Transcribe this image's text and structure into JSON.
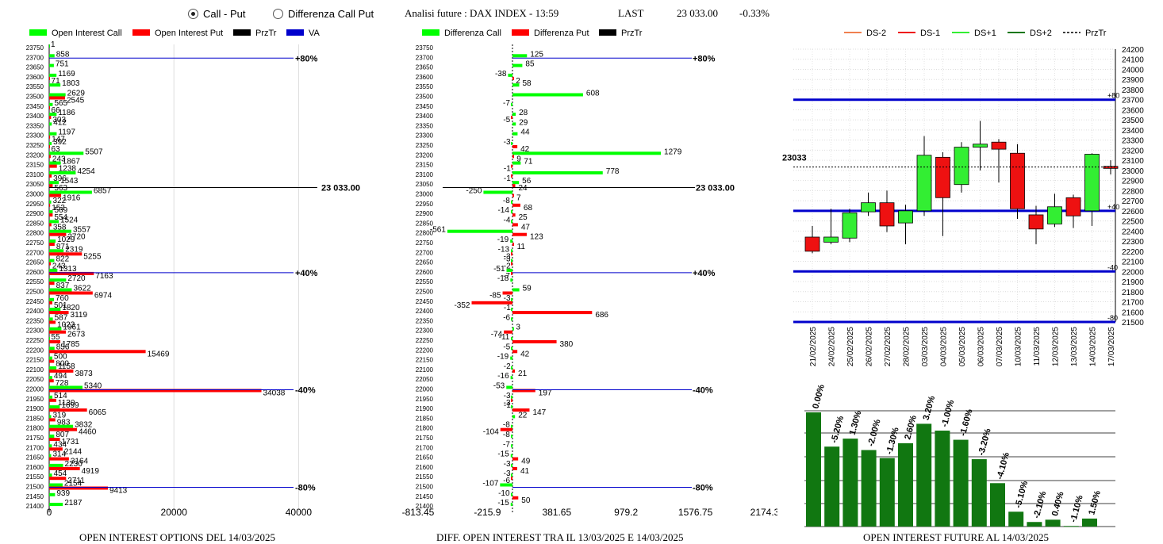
{
  "controls": {
    "radio_call_put": "Call - Put",
    "radio_diff": "Differenza Call Put",
    "selected": "call_put"
  },
  "header": {
    "analysis_label": "Analisi future : DAX INDEX - 13:59",
    "last_label": "LAST",
    "last_value": "23 033.00",
    "change": "-0.33%"
  },
  "colors": {
    "green": "#00ff00",
    "red": "#ff0000",
    "blue": "#0000cc",
    "dark_green": "#117711",
    "black": "#000000"
  },
  "chart_data": [
    {
      "type": "bar",
      "title": "OPEN INTEREST OPTIONS DEL 14/03/2025",
      "legend": [
        "Open Interest Call",
        "Open Interest Put",
        "PrzTr",
        "VA"
      ],
      "strikes": [
        23750,
        23700,
        23650,
        23600,
        23550,
        23500,
        23450,
        23400,
        23350,
        23300,
        23250,
        23200,
        23150,
        23100,
        23050,
        23000,
        22950,
        22900,
        22850,
        22800,
        22750,
        22700,
        22650,
        22600,
        22550,
        22500,
        22450,
        22400,
        22350,
        22300,
        22250,
        22200,
        22150,
        22100,
        22050,
        22000,
        21950,
        21900,
        21850,
        21800,
        21750,
        21700,
        21650,
        21600,
        21550,
        21500,
        21450,
        21400
      ],
      "call": [
        1,
        858,
        751,
        1169,
        1803,
        2629,
        565,
        1186,
        412,
        1197,
        392,
        5507,
        1867,
        4254,
        1543,
        6857,
        322,
        569,
        1524,
        3557,
        1029,
        2319,
        822,
        1313,
        2720,
        3622,
        760,
        1820,
        587,
        1961,
        55,
        856,
        500,
        1158,
        494,
        5340,
        514,
        1699,
        319,
        3832,
        807,
        434,
        314,
        2230,
        454,
        2154,
        939,
        2187
      ],
      "put": [
        0,
        0,
        0,
        71,
        0,
        2545,
        66,
        303,
        0,
        147,
        63,
        243,
        1238,
        396,
        563,
        1916,
        152,
        554,
        358,
        2720,
        871,
        5255,
        243,
        7163,
        837,
        6974,
        501,
        3119,
        1023,
        2673,
        1785,
        15469,
        800,
        3873,
        728,
        34038,
        1130,
        6065,
        983,
        4460,
        1731,
        2144,
        3164,
        4919,
        2711,
        9413,
        0,
        0
      ],
      "xticks": [
        0,
        20000,
        40000
      ],
      "xlim": [
        0,
        43000
      ],
      "last_price": "23 033.00",
      "levels": [
        {
          "label": "+80%",
          "strike": 23700
        },
        {
          "label": "+40%",
          "strike": 22600
        },
        {
          "label": "-40%",
          "strike": 22000
        },
        {
          "label": "-80%",
          "strike": 21500
        }
      ]
    },
    {
      "type": "bar",
      "title": "DIFF. OPEN INTEREST TRA IL 13/03/2025 E 14/03/2025",
      "legend": [
        "Differenza Call",
        "Differenza Put",
        "PrzTr"
      ],
      "strikes": [
        23750,
        23700,
        23650,
        23600,
        23550,
        23500,
        23450,
        23400,
        23350,
        23300,
        23250,
        23200,
        23150,
        23100,
        23050,
        23000,
        22950,
        22900,
        22850,
        22800,
        22750,
        22700,
        22650,
        22600,
        22550,
        22500,
        22450,
        22400,
        22350,
        22300,
        22250,
        22200,
        22150,
        22100,
        22050,
        22000,
        21950,
        21900,
        21850,
        21800,
        21750,
        21700,
        21650,
        21600,
        21550,
        21500,
        21450,
        21400
      ],
      "call": [
        0,
        125,
        85,
        -38,
        58,
        608,
        -7,
        28,
        29,
        44,
        -3,
        1279,
        71,
        778,
        56,
        -250,
        -8,
        -14,
        -4,
        -561,
        -19,
        -13,
        -3,
        -51,
        -18,
        59,
        -3,
        -1,
        -6,
        3,
        -11,
        -5,
        -19,
        -2,
        -16,
        -53,
        -3,
        -1,
        22,
        -8,
        -8,
        -7,
        -15,
        -3,
        -3,
        -107,
        -10,
        -15
      ],
      "put": [
        0,
        0,
        0,
        2,
        0,
        0,
        0,
        -5,
        0,
        0,
        42,
        9,
        -1,
        -1,
        24,
        7,
        68,
        25,
        47,
        123,
        11,
        -3,
        -2,
        -7,
        0,
        -85,
        -352,
        686,
        0,
        -74,
        380,
        42,
        0,
        21,
        0,
        197,
        -3,
        147,
        0,
        -104,
        0,
        0,
        49,
        41,
        -6,
        0,
        50,
        0
      ],
      "call_labels": [
        "",
        "125",
        "85",
        "-38",
        "58",
        "608",
        "-7",
        "28",
        "29",
        "44",
        "-3",
        "1279",
        "71",
        "778",
        "56",
        "-250",
        "-8",
        "-14",
        "-4",
        "-561",
        "-19",
        "-13",
        "-3",
        "-51",
        "-18",
        "59",
        "-3",
        "-1",
        "-6",
        "3",
        "-11",
        "-5",
        "-19",
        "-2",
        "-16",
        "-53",
        "-3",
        "-1",
        "22",
        "-8",
        "-8",
        "-7",
        "-15",
        "-3",
        "-3",
        "-107",
        "-10",
        "-15"
      ],
      "put_labels": [
        "",
        "",
        "",
        "2",
        "",
        "",
        "",
        "-5",
        "",
        "",
        "42",
        "9",
        "-1",
        "-1",
        "24",
        "7",
        "68",
        "25",
        "47",
        "123",
        "11",
        "-3",
        "-2",
        "-7",
        "",
        "-85",
        "-352",
        "686",
        "",
        "-74",
        "380",
        "42",
        "",
        "21",
        "",
        "197",
        "-3",
        "147",
        "",
        "-104",
        "",
        "",
        "49",
        "41",
        "-6",
        "",
        "50",
        ""
      ],
      "xticks": [
        "-813.45",
        "-215.9",
        "381.65",
        "979.2",
        "1576.75",
        "2174.3"
      ],
      "xlim": [
        -813.45,
        2174.3
      ],
      "last_price": "23 033.00",
      "levels": [
        {
          "label": "+80%",
          "strike": 23700
        },
        {
          "label": "+40%",
          "strike": 22600
        },
        {
          "label": "-40%",
          "strike": 22000
        },
        {
          "label": "-80%",
          "strike": 21500
        }
      ]
    },
    {
      "type": "candlestick",
      "legend": [
        "DS-2",
        "DS-1",
        "DS+1",
        "DS+2",
        "PrzTr"
      ],
      "legend_colors": [
        "#f08050",
        "#ee1111",
        "#33ee33",
        "#117711",
        "#000000"
      ],
      "ylim": [
        21500,
        24200
      ],
      "yticks": [
        21500,
        21600,
        21700,
        21800,
        21900,
        22000,
        22100,
        22200,
        22300,
        22400,
        22500,
        22600,
        22700,
        22800,
        22900,
        23000,
        23100,
        23200,
        23300,
        23400,
        23500,
        23600,
        23700,
        23800,
        23900,
        24000,
        24100,
        24200
      ],
      "dates": [
        "21/02/2025",
        "24/02/2025",
        "25/02/2025",
        "26/02/2025",
        "27/02/2025",
        "28/02/2025",
        "03/03/2025",
        "04/03/2025",
        "05/03/2025",
        "06/03/2025",
        "07/03/2025",
        "10/03/2025",
        "11/03/2025",
        "12/03/2025",
        "13/03/2025",
        "14/03/2025",
        "17/03/2025"
      ],
      "candles": [
        {
          "o": 22340,
          "h": 22450,
          "l": 22180,
          "c": 22200
        },
        {
          "o": 22290,
          "h": 22620,
          "l": 22270,
          "c": 22340
        },
        {
          "o": 22330,
          "h": 22620,
          "l": 22290,
          "c": 22580
        },
        {
          "o": 22590,
          "h": 22780,
          "l": 22550,
          "c": 22680
        },
        {
          "o": 22680,
          "h": 22800,
          "l": 22390,
          "c": 22450
        },
        {
          "o": 22480,
          "h": 22660,
          "l": 22270,
          "c": 22600
        },
        {
          "o": 22600,
          "h": 23340,
          "l": 22550,
          "c": 23150
        },
        {
          "o": 23130,
          "h": 23180,
          "l": 22350,
          "c": 22730
        },
        {
          "o": 22860,
          "h": 23280,
          "l": 22780,
          "c": 23230
        },
        {
          "o": 23230,
          "h": 23490,
          "l": 23000,
          "c": 23260
        },
        {
          "o": 23280,
          "h": 23310,
          "l": 22880,
          "c": 23210
        },
        {
          "o": 23170,
          "h": 23260,
          "l": 22520,
          "c": 22620
        },
        {
          "o": 22560,
          "h": 22650,
          "l": 22270,
          "c": 22420
        },
        {
          "o": 22470,
          "h": 22770,
          "l": 22440,
          "c": 22640
        },
        {
          "o": 22730,
          "h": 22760,
          "l": 22430,
          "c": 22550
        },
        {
          "o": 22600,
          "h": 23170,
          "l": 22450,
          "c": 23160
        },
        {
          "o": 23040,
          "h": 23100,
          "l": 22960,
          "c": 23020
        }
      ],
      "last_price": 23033,
      "last_label": "23033",
      "levels": [
        {
          "label": "+80",
          "value": 23700
        },
        {
          "label": "+40",
          "value": 22600
        },
        {
          "label": "-40",
          "value": 22000
        },
        {
          "label": "-80",
          "value": 21500
        }
      ]
    },
    {
      "type": "bar",
      "title": "OPEN INTEREST FUTURE AL 14/03/2025",
      "labels": [
        "0.00%",
        "-5.20%",
        "1.30%",
        "-2.00%",
        "-1.30%",
        "2.60%",
        "3.20%",
        "-1.00%",
        "-1.60%",
        "-3.20%",
        "-4.10%",
        "-5.10%",
        "-2.10%",
        "0.40%",
        "-1.10%",
        "1.50%"
      ],
      "values": [
        100,
        70,
        77,
        67,
        60,
        73,
        90,
        84,
        76,
        59,
        38,
        13,
        4,
        6,
        0.5,
        7
      ]
    }
  ]
}
